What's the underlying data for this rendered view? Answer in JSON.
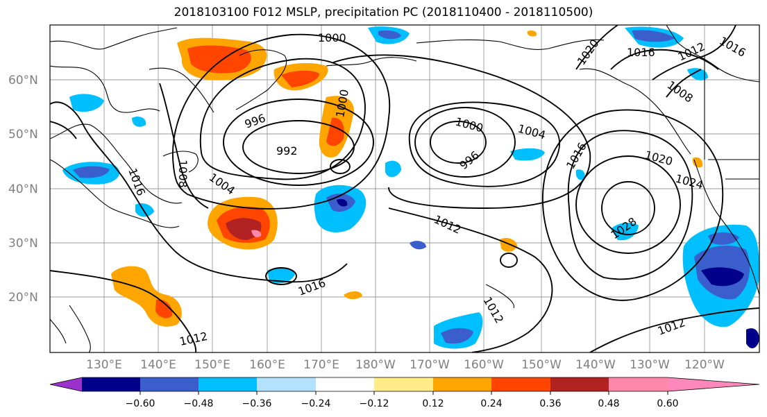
{
  "title": "2018103100 F012 MSLP, precipitation PC (2018110400 - 2018110500)",
  "map": {
    "lat_labels": [
      "60°N",
      "50°N",
      "40°N",
      "30°N",
      "20°N"
    ],
    "lon_labels": [
      "130°E",
      "140°E",
      "150°E",
      "160°E",
      "170°E",
      "180°W",
      "170°W",
      "160°W",
      "150°W",
      "140°W",
      "130°W",
      "120°W"
    ],
    "grid": true
  },
  "isobars": {
    "labels": [
      "1000",
      "1016",
      "1012",
      "1008",
      "1020",
      "1016",
      "1000",
      "996",
      "992",
      "1004",
      "1016",
      "1008",
      "1000",
      "1004",
      "996",
      "1020",
      "1016",
      "1024",
      "1012",
      "1028",
      "1016",
      "1012",
      "1012",
      "1012"
    ]
  },
  "colorbar": {
    "tick_labels": [
      "−0.60",
      "−0.48",
      "−0.36",
      "−0.24",
      "−0.12",
      "0.12",
      "0.24",
      "0.36",
      "0.48",
      "0.60"
    ],
    "colors": [
      "#9933cc",
      "#00008b",
      "#3a5fcd",
      "#00bfff",
      "#b2e2ff",
      "#ffffff",
      "#ffeb88",
      "#ffa500",
      "#ff4500",
      "#b22222",
      "#ff88aa",
      "#ff88bb"
    ]
  }
}
